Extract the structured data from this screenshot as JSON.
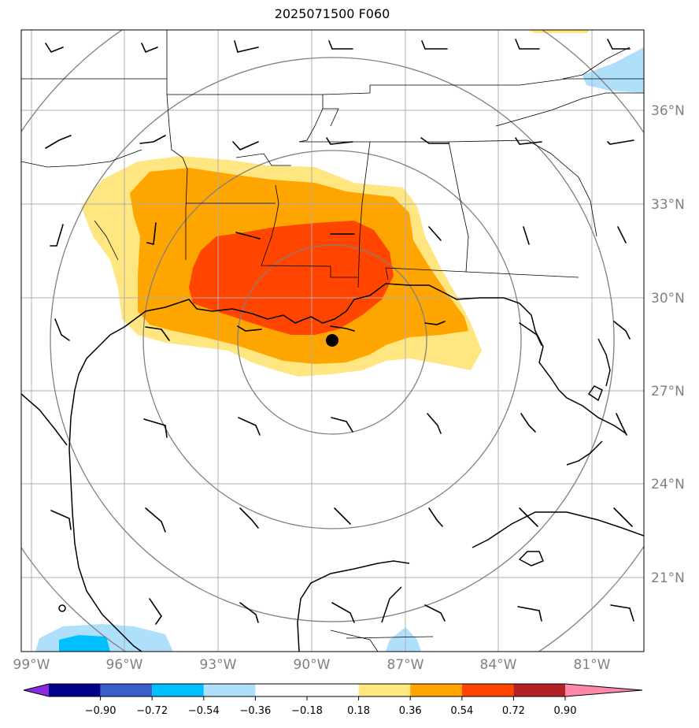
{
  "title": "2025071500 F060",
  "lat_labels": [
    "36°N",
    "33°N",
    "30°N",
    "27°N",
    "24°N",
    "21°N"
  ],
  "lon_labels": [
    "99°W",
    "96°W",
    "93°W",
    "90°W",
    "87°W",
    "84°W",
    "81°W"
  ],
  "colorbar": {
    "labels": [
      "−0.90",
      "−0.72",
      "−0.54",
      "−0.36",
      "−0.18",
      "0.18",
      "0.36",
      "0.54",
      "0.72",
      "0.90"
    ],
    "colors": [
      "#8a2be2",
      "#00008b",
      "#3a5fcd",
      "#00bfff",
      "#aee0fb",
      "#ffffff",
      "#ffe680",
      "#ffa500",
      "#ff4500",
      "#b22222",
      "#ff88aa"
    ]
  },
  "map": {
    "extent": {
      "lon_min": -99.3,
      "lon_max": -79.7,
      "lat_min": 18.2,
      "lat_max": 38.2
    },
    "center_marker": {
      "lon": -89.3,
      "lat": 28.6
    }
  }
}
